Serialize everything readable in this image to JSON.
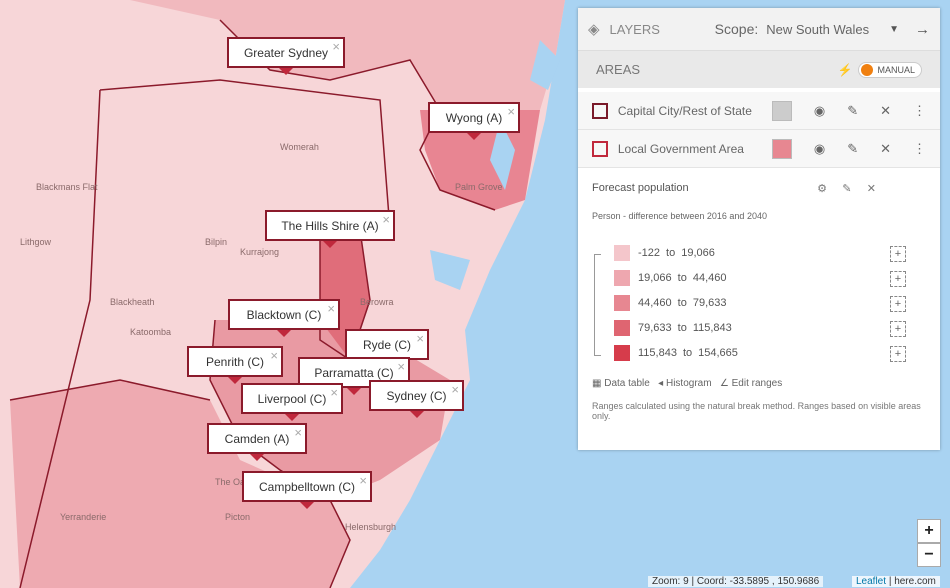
{
  "panel": {
    "title": "LAYERS",
    "scope_label": "Scope:",
    "scope_value": "New South Wales",
    "section": "AREAS",
    "toggle": "MANUAL",
    "layers": [
      "Capital City/Rest of State",
      "Local Government Area"
    ],
    "legend": {
      "title": "Forecast population",
      "subtitle": "Person - difference between 2016 and 2040",
      "joiner": "to",
      "ranges": [
        {
          "from": "-122",
          "to": "19,066",
          "color": "#f4c6cb"
        },
        {
          "from": "19,066",
          "to": "44,460",
          "color": "#eea7af"
        },
        {
          "from": "44,460",
          "to": "79,633",
          "color": "#e78791"
        },
        {
          "from": "79,633",
          "to": "115,843",
          "color": "#df6571"
        },
        {
          "from": "115,843",
          "to": "154,665",
          "color": "#d63c4b"
        }
      ],
      "links": [
        "Data table",
        "Histogram",
        "Edit ranges"
      ],
      "note": "Ranges calculated using the natural break method. Ranges based on visible areas only."
    }
  },
  "popups": [
    "Greater Sydney",
    "Wyong (A)",
    "The Hills Shire (A)",
    "Blacktown (C)",
    "Ryde (C)",
    "Penrith (C)",
    "Parramatta (C)",
    "Sydney (C)",
    "Liverpool (C)",
    "Camden (A)",
    "Campbelltown (C)"
  ],
  "places": [
    "Blackmans Flat",
    "Lithgow",
    "Womerah",
    "Bilpin",
    "Kurrajong",
    "Blackheath",
    "Katoomba",
    "Yerranderie",
    "The Oaks",
    "Picton",
    "Helensburgh",
    "Berowra",
    "Palm Grove"
  ],
  "zoom": {
    "in": "+",
    "out": "−"
  },
  "footer": {
    "coords": "Zoom: 9 | Coord: -33.5895 , 150.9686",
    "leaflet": "Leaflet",
    "provider": "| here.com"
  }
}
